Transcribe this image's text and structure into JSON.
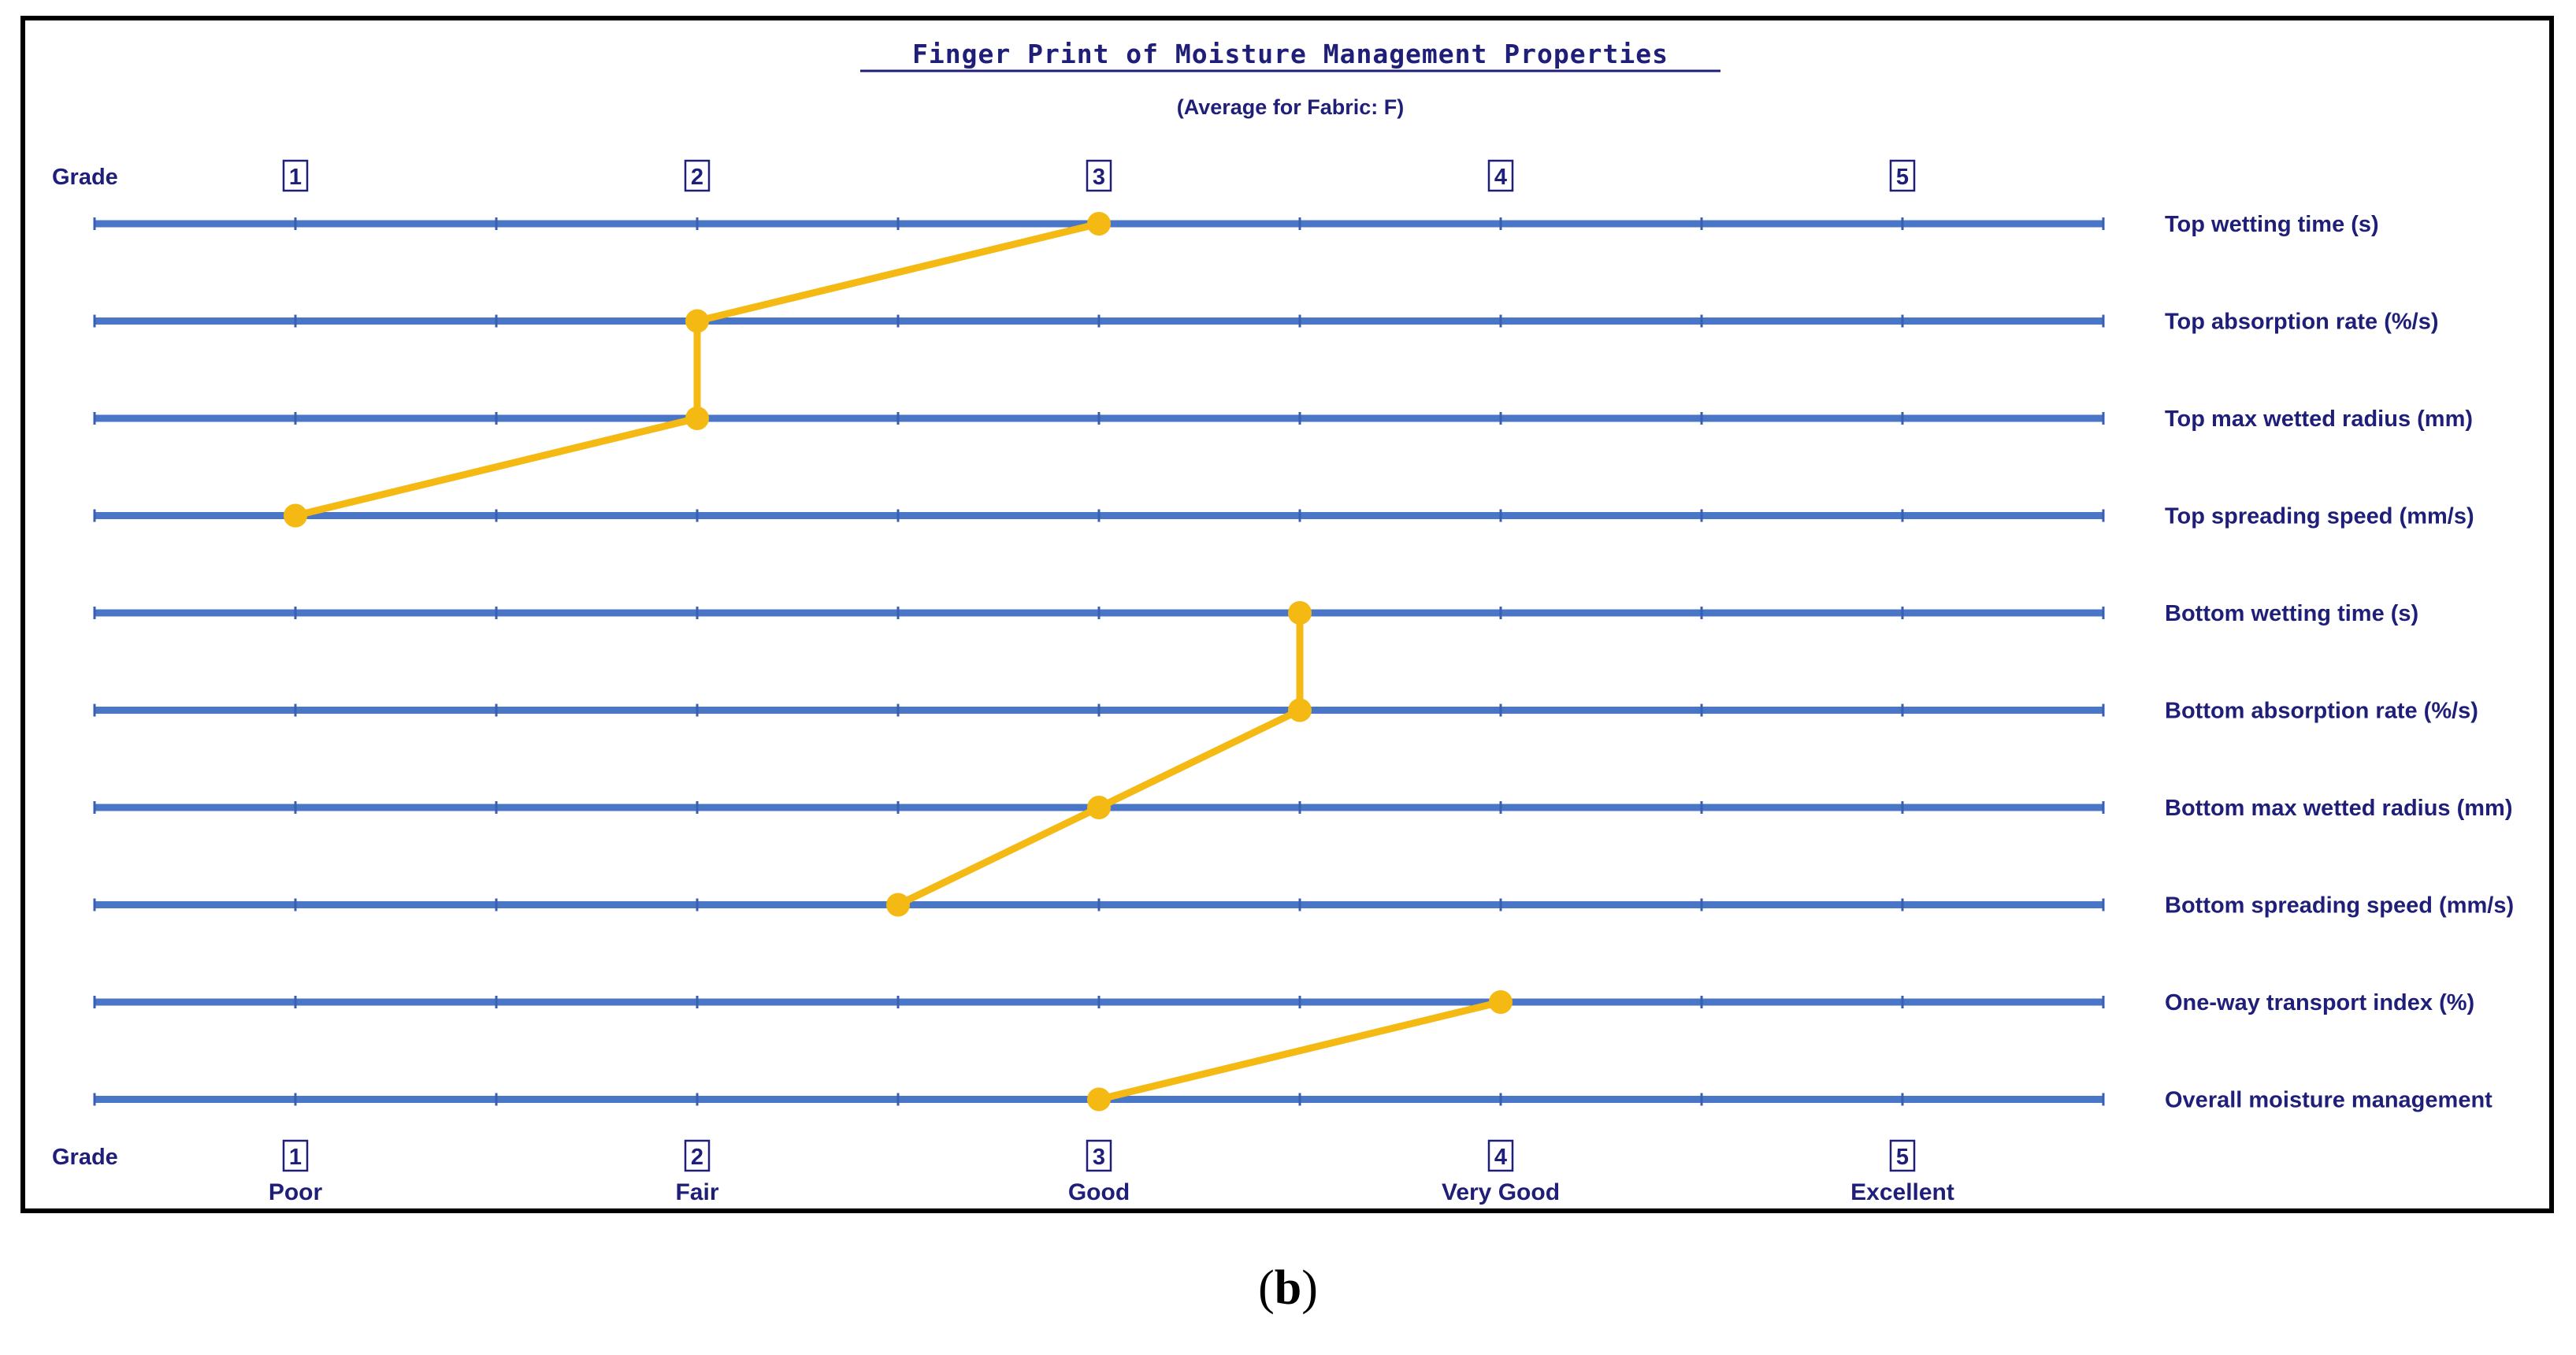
{
  "chart_data": {
    "type": "line",
    "title": "Finger Print of Moisture Management Properties",
    "subtitle": "(Average for Fabric: F)",
    "axis_label": "Grade",
    "grades": [
      "1",
      "2",
      "3",
      "4",
      "5"
    ],
    "ratings": [
      "Poor",
      "Fair",
      "Good",
      "Very Good",
      "Excellent"
    ],
    "xlim": [
      0.5,
      5.5
    ],
    "rows": [
      {
        "label": "Top wetting time (s)",
        "value": 3.0
      },
      {
        "label": "Top absorption rate (%/s)",
        "value": 2.0
      },
      {
        "label": "Top max wetted radius (mm)",
        "value": 2.0
      },
      {
        "label": "Top spreading speed (mm/s)",
        "value": 1.0
      },
      {
        "label": "Bottom wetting time (s)",
        "value": 3.5
      },
      {
        "label": "Bottom absorption rate (%/s)",
        "value": 3.5
      },
      {
        "label": "Bottom max wetted radius (mm)",
        "value": 3.0
      },
      {
        "label": "Bottom spreading speed (mm/s)",
        "value": 2.5
      },
      {
        "label": "One-way transport index (%)",
        "value": 4.0
      },
      {
        "label": "Overall moisture management",
        "value": 3.0
      }
    ],
    "connected_groups": [
      [
        0,
        1,
        2,
        3
      ],
      [
        4,
        5,
        6,
        7
      ],
      [
        8,
        9
      ]
    ],
    "colors": {
      "axis": "#4a76c7",
      "line": "#f5b914",
      "text": "#1f1f7a"
    }
  },
  "caption": {
    "label": "b"
  }
}
